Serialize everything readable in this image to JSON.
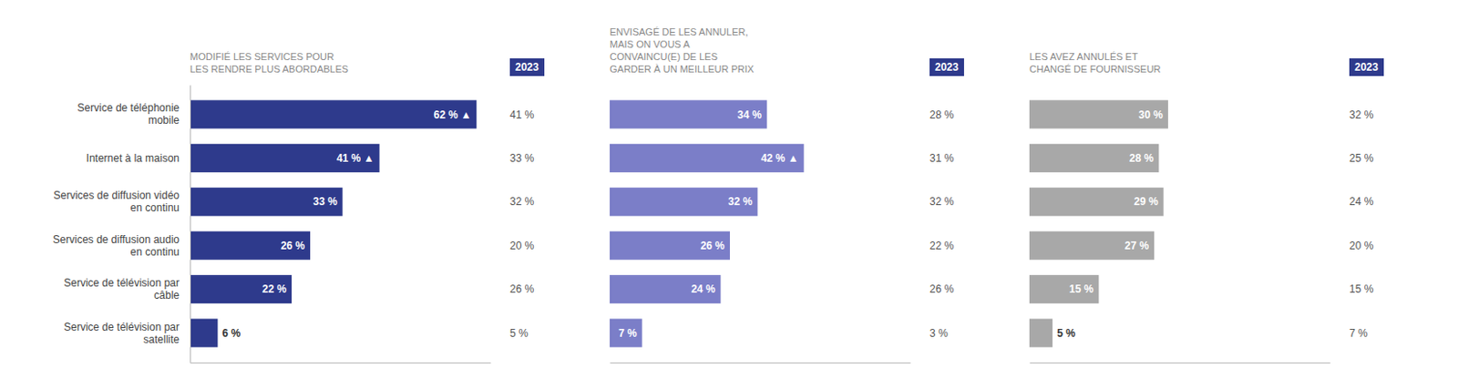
{
  "chart_data": [
    {
      "type": "bar",
      "orientation": "horizontal",
      "title": "MODIFIÉ LES SERVICES POUR\nLES RENDRE PLUS ABORDABLES",
      "categories": [
        "Service de téléphonie\nmobile",
        "Internet à la maison",
        "Services de diffusion vidéo\nen continu",
        "Services de diffusion audio\nen continu",
        "Service de télévision par\ncâble",
        "Service de télévision par\nsatellite"
      ],
      "series": [
        {
          "color": "#2E3A8C",
          "values": [
            62,
            41,
            33,
            26,
            22,
            6
          ],
          "value_labels": [
            "62 % ▲",
            "41 % ▲",
            "33 %",
            "26 %",
            "22 %",
            "6 %"
          ]
        },
        {
          "name": "2023",
          "type": "text",
          "color": "#2E3A8C",
          "values": [
            41,
            33,
            32,
            20,
            26,
            5
          ],
          "value_labels": [
            "41 %",
            "33 %",
            "32 %",
            "20 %",
            "26 %",
            "5 %"
          ]
        }
      ],
      "xlim": [
        0,
        65
      ],
      "tick_labels": "y",
      "data_labels": true,
      "legend": "top"
    },
    {
      "type": "bar",
      "orientation": "horizontal",
      "title": "ENVISAGÉ DE LES ANNULER,\nMAIS ON VOUS A\nCONVAINCU(E) DE LES\nGARDER À UN MEILLEUR PRIX",
      "categories": [
        "Service de téléphonie\nmobile",
        "Internet à la maison",
        "Services de diffusion vidéo\nen continu",
        "Services de diffusion audio\nen continu",
        "Service de télévision par\ncâble",
        "Service de télévision par\nsatellite"
      ],
      "series": [
        {
          "color": "#7B7EC8",
          "values": [
            34,
            42,
            32,
            26,
            24,
            7
          ],
          "value_labels": [
            "34 %",
            "42 % ▲",
            "32 %",
            "26 %",
            "24 %",
            "7 %"
          ]
        },
        {
          "name": "2023",
          "type": "text",
          "color": "#2E3A8C",
          "values": [
            28,
            31,
            32,
            22,
            26,
            3
          ],
          "value_labels": [
            "28 %",
            "31 %",
            "32 %",
            "22 %",
            "26 %",
            "3 %"
          ]
        }
      ],
      "xlim": [
        0,
        65
      ],
      "tick_labels": false,
      "data_labels": true,
      "legend": "top"
    },
    {
      "type": "bar",
      "orientation": "horizontal",
      "title": "LES AVEZ ANNULÉS ET\nCHANGÉ DE FOURNISSEUR",
      "categories": [
        "Service de téléphonie\nmobile",
        "Internet à la maison",
        "Services de diffusion vidéo\nen continu",
        "Services de diffusion audio\nen continu",
        "Service de télévision par\ncâble",
        "Service de télévision par\nsatellite"
      ],
      "series": [
        {
          "color": "#A8A8A8",
          "values": [
            30,
            28,
            29,
            27,
            15,
            5
          ],
          "value_labels": [
            "30 %",
            "28 %",
            "29 %",
            "27 %",
            "15 %",
            "5 %"
          ]
        },
        {
          "name": "2023",
          "type": "text",
          "color": "#2E3A8C",
          "values": [
            32,
            25,
            24,
            20,
            15,
            7
          ],
          "value_labels": [
            "32 %",
            "25 %",
            "24 %",
            "20 %",
            "15 %",
            "7 %"
          ]
        }
      ],
      "xlim": [
        0,
        65
      ],
      "tick_labels": false,
      "data_labels": true,
      "legend": "top"
    }
  ]
}
